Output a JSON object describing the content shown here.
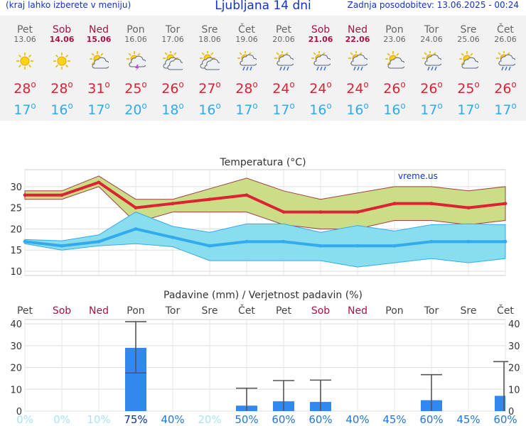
{
  "header": {
    "menu_hint": "(kraj lahko izberete v meniju)",
    "title": "Ljubljana 14 dni",
    "updated": "Zadnja posodobitev: 13.06.2025 - 00:24"
  },
  "days": [
    {
      "name": "Pet",
      "date": "13.06",
      "weekend": false,
      "icon": "sun-icon",
      "tmax": "28",
      "tmin": "17"
    },
    {
      "name": "Sob",
      "date": "14.06",
      "weekend": true,
      "icon": "sun-icon",
      "tmax": "28",
      "tmin": "16"
    },
    {
      "name": "Ned",
      "date": "15.06",
      "weekend": true,
      "icon": "sun-cloud-icon",
      "tmax": "31",
      "tmin": "17"
    },
    {
      "name": "Pon",
      "date": "16.06",
      "weekend": false,
      "icon": "sun-thunder-icon",
      "tmax": "25",
      "tmin": "20"
    },
    {
      "name": "Tor",
      "date": "17.06",
      "weekend": false,
      "icon": "partly-cloudy-icon",
      "tmax": "26",
      "tmin": "18"
    },
    {
      "name": "Sre",
      "date": "18.06",
      "weekend": false,
      "icon": "partly-cloudy-icon",
      "tmax": "27",
      "tmin": "16"
    },
    {
      "name": "Čet",
      "date": "19.06",
      "weekend": false,
      "icon": "sun-rain-icon",
      "tmax": "28",
      "tmin": "17"
    },
    {
      "name": "Pet",
      "date": "20.06",
      "weekend": false,
      "icon": "sun-rain-icon",
      "tmax": "24",
      "tmin": "17"
    },
    {
      "name": "Sob",
      "date": "21.06",
      "weekend": true,
      "icon": "sun-rain-icon",
      "tmax": "24",
      "tmin": "16"
    },
    {
      "name": "Ned",
      "date": "22.06",
      "weekend": true,
      "icon": "sun-rain-icon",
      "tmax": "24",
      "tmin": "16"
    },
    {
      "name": "Pon",
      "date": "23.06",
      "weekend": false,
      "icon": "sun-cloud-icon",
      "tmax": "26",
      "tmin": "16"
    },
    {
      "name": "Tor",
      "date": "24.06",
      "weekend": false,
      "icon": "sun-rain-icon",
      "tmax": "26",
      "tmin": "17"
    },
    {
      "name": "Sre",
      "date": "25.06",
      "weekend": false,
      "icon": "sun-cloud-icon",
      "tmax": "25",
      "tmin": "17"
    },
    {
      "name": "Čet",
      "date": "26.06",
      "weekend": false,
      "icon": "sun-rain-icon",
      "tmax": "26",
      "tmin": "17"
    }
  ],
  "deg_symbol": "o",
  "colors": {
    "weekday": "#666666",
    "weekend": "#aa1144",
    "tmax": "#dd2233",
    "tmin": "#33aaee",
    "tmax_band": "#ccdd88",
    "tmin_band": "#88ddee",
    "precip_bar": "#3388ee"
  },
  "chart_data": [
    {
      "type": "line",
      "title": "Temperatura (°C)",
      "watermark": "vreme.us",
      "ylim": [
        9,
        34
      ],
      "yticks": [
        10,
        15,
        20,
        25,
        30
      ],
      "series": [
        {
          "name": "max",
          "values": [
            28,
            28,
            31,
            25,
            26,
            27,
            28,
            24,
            24,
            24,
            26,
            26,
            25,
            26
          ],
          "band_low": [
            27,
            27,
            30,
            21.5,
            24,
            24,
            24,
            21,
            20,
            20,
            22,
            22,
            21,
            22
          ],
          "band_high": [
            29,
            29,
            32.5,
            27,
            27,
            29.5,
            32,
            29,
            27,
            28.5,
            30,
            30,
            29,
            30
          ]
        },
        {
          "name": "min",
          "values": [
            17,
            16,
            17,
            20,
            18,
            16,
            17,
            17,
            16,
            16,
            16,
            17,
            17,
            17
          ],
          "band_low": [
            16.5,
            15,
            16,
            16.5,
            15.8,
            12.5,
            12.5,
            12.5,
            12.5,
            11,
            12,
            13,
            12,
            13
          ],
          "band_high": [
            17.5,
            17.2,
            18.6,
            24,
            20.6,
            19.2,
            21.2,
            21.2,
            19.2,
            20.8,
            19.5,
            21,
            21.2,
            21
          ]
        }
      ]
    },
    {
      "type": "bar",
      "title": "Padavine (mm) / Verjetnost padavin (%)",
      "ylim": [
        0,
        42
      ],
      "yticks": [
        0,
        10,
        20,
        30,
        40
      ],
      "values": [
        0,
        0,
        0,
        29,
        0,
        0,
        2.5,
        4.5,
        4.2,
        0,
        0,
        5,
        0,
        7
      ],
      "err_low": [
        0,
        0,
        0,
        17.5,
        0,
        0,
        0,
        0,
        0,
        0,
        0,
        0,
        0,
        0
      ],
      "err_high": [
        0,
        0,
        0,
        41,
        0,
        0,
        10.5,
        14,
        14.2,
        0,
        0,
        16.7,
        0,
        22.7
      ],
      "probabilities": [
        "0%",
        "0%",
        "10%",
        "75%",
        "40%",
        "20%",
        "50%",
        "60%",
        "60%",
        "40%",
        "45%",
        "60%",
        "45%",
        "60%"
      ]
    }
  ]
}
